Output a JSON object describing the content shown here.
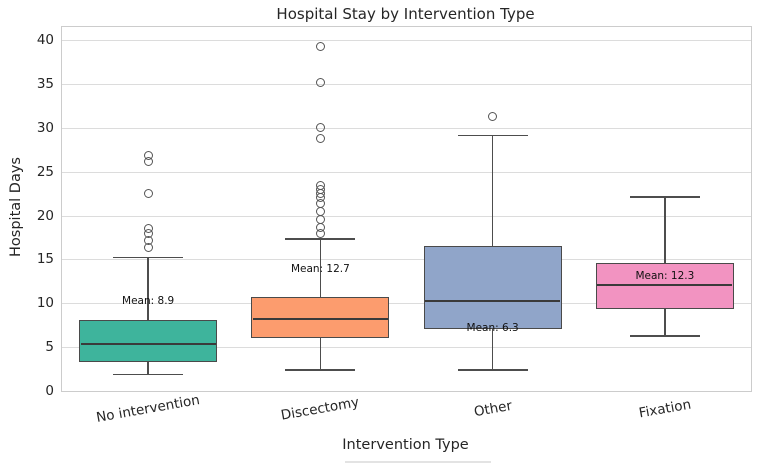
{
  "chart_data": {
    "type": "boxplot",
    "title": "Hospital Stay by Intervention Type",
    "xlabel": "Intervention Type",
    "ylabel": "Hospital Days",
    "ylim": [
      0,
      40
    ],
    "yticks": [
      0,
      5,
      10,
      15,
      20,
      25,
      30,
      35,
      40
    ],
    "grid": "horizontal",
    "legend": "none",
    "categories": [
      "No intervention",
      "Discectomy",
      "Other",
      "Fixation"
    ],
    "series": [
      {
        "category": "No intervention",
        "box_color": "#3eb49c",
        "whisker_low": 1.9,
        "q1": 3.3,
        "median": 5.4,
        "q3": 8.1,
        "whisker_high": 15.2,
        "mean": 8.9,
        "mean_label": "Mean: 8.9",
        "mean_label_y": 10.1,
        "outliers": [
          16.3,
          17.1,
          18.0,
          18.5,
          22.5,
          26.2,
          26.8
        ]
      },
      {
        "category": "Discectomy",
        "box_color": "#fc9c6e",
        "whisker_low": 2.4,
        "q1": 6.0,
        "median": 8.2,
        "q3": 10.7,
        "whisker_high": 17.3,
        "mean": 12.7,
        "mean_label": "Mean: 12.7",
        "mean_label_y": 13.8,
        "outliers": [
          17.9,
          18.6,
          19.6,
          20.5,
          21.4,
          22.0,
          22.5,
          23.0,
          23.4,
          28.8,
          30.0,
          35.2,
          39.3
        ]
      },
      {
        "category": "Other",
        "box_color": "#90a5c9",
        "whisker_low": 2.4,
        "q1": 7.1,
        "median": 10.3,
        "q3": 16.5,
        "whisker_high": 29.1,
        "mean": 6.3,
        "mean_label": "Mean: 6.3",
        "mean_label_y": 7.1,
        "outliers": [
          31.3
        ]
      },
      {
        "category": "Fixation",
        "box_color": "#f293c1",
        "whisker_low": 6.3,
        "q1": 9.3,
        "median": 12.1,
        "q3": 14.6,
        "whisker_high": 22.1,
        "mean": 12.3,
        "mean_label": "Mean: 12.3",
        "mean_label_y": 13.0,
        "outliers": []
      }
    ],
    "style": {
      "line_color": "#4d4d4d",
      "median_color": "#3a3a3a",
      "grid_color": "#dcdcdc",
      "spine_color": "#cccccc",
      "text_color": "#262626",
      "outlier_edge_color": "#555555",
      "background": "#ffffff"
    }
  }
}
